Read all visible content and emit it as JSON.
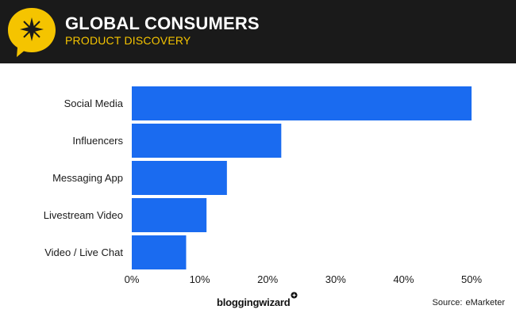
{
  "header": {
    "title": "GLOBAL CONSUMERS",
    "subtitle": "PRODUCT DISCOVERY"
  },
  "colors": {
    "bar": "#1a6bf0",
    "header_bg": "#1a1a1a",
    "accent": "#f5c400"
  },
  "chart_data": {
    "type": "bar",
    "orientation": "horizontal",
    "title": "GLOBAL CONSUMERS",
    "subtitle": "PRODUCT DISCOVERY",
    "categories": [
      "Social Media",
      "Influencers",
      "Messaging App",
      "Livestream Video",
      "Video / Live Chat"
    ],
    "values": [
      50,
      22,
      14,
      11,
      8
    ],
    "unit": "%",
    "xlim": [
      0,
      50
    ],
    "xticks": [
      0,
      10,
      20,
      30,
      40,
      50
    ],
    "xtick_labels": [
      "0%",
      "10%",
      "20%",
      "30%",
      "40%",
      "50%"
    ],
    "xlabel": "",
    "ylabel": "",
    "grid": false
  },
  "footer": {
    "brand": "bloggingwizard",
    "source_label": "Source:",
    "source_value": "eMarketer"
  }
}
